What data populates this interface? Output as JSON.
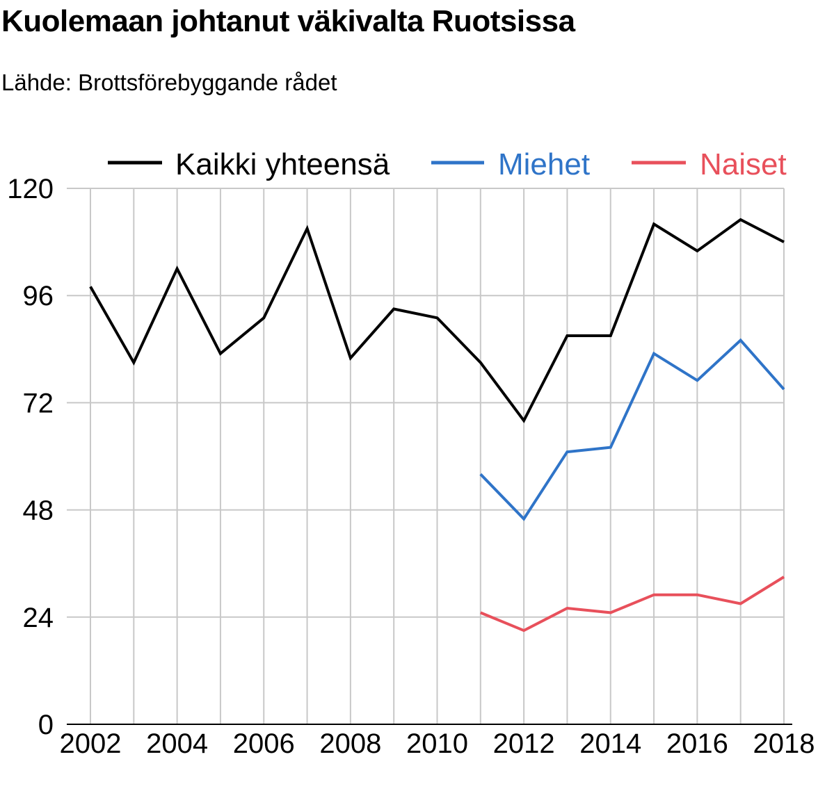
{
  "title": "Kuolemaan johtanut väkivalta Ruotsissa",
  "subtitle": "Lähde: Brottsförebyggande rådet",
  "colors": {
    "total": "#000000",
    "men": "#2f74c8",
    "women": "#e8505b",
    "grid": "#c8c8c8"
  },
  "chart_data": {
    "type": "line",
    "title": "Kuolemaan johtanut väkivalta Ruotsissa",
    "subtitle": "Lähde: Brottsförebyggande rådet",
    "x": [
      2002,
      2003,
      2004,
      2005,
      2006,
      2007,
      2008,
      2009,
      2010,
      2011,
      2012,
      2013,
      2014,
      2015,
      2016,
      2017,
      2018
    ],
    "x_tick_labels": [
      "2002",
      "2004",
      "2006",
      "2008",
      "2010",
      "2012",
      "2014",
      "2016",
      "2018"
    ],
    "y_tick_labels": [
      "0",
      "24",
      "48",
      "72",
      "96",
      "120"
    ],
    "ylim": [
      0,
      120
    ],
    "xlim": [
      2002,
      2018
    ],
    "grid": true,
    "legend_position": "top",
    "series": [
      {
        "name": "Kaikki yhteensä",
        "color": "#000000",
        "values": [
          98,
          81,
          102,
          83,
          91,
          111,
          82,
          93,
          91,
          81,
          68,
          87,
          87,
          112,
          106,
          113,
          108
        ]
      },
      {
        "name": "Miehet",
        "color": "#2f74c8",
        "values": [
          null,
          null,
          null,
          null,
          null,
          null,
          null,
          null,
          null,
          56,
          46,
          61,
          62,
          83,
          77,
          86,
          75
        ]
      },
      {
        "name": "Naiset",
        "color": "#e8505b",
        "values": [
          null,
          null,
          null,
          null,
          null,
          null,
          null,
          null,
          null,
          25,
          21,
          26,
          25,
          29,
          29,
          27,
          33
        ]
      }
    ]
  }
}
